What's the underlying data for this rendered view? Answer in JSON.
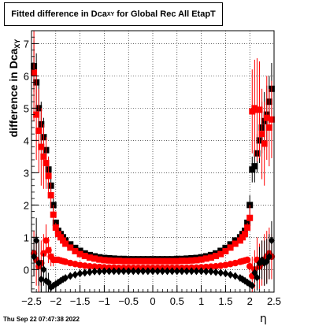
{
  "title": {
    "main": "Fitted difference in Dca",
    "sub": "XY",
    "tail": " for Global Rec All EtapT"
  },
  "ylabel": {
    "main": "difference in Dca",
    "sub": "XY"
  },
  "xlabel": "η",
  "timestamp": "Thu Sep 22 07:47:38 2022",
  "colors": {
    "series_black": "#000000",
    "series_red": "#ff0000",
    "frame": "#000000",
    "grid": "#000000"
  },
  "chart_data": {
    "type": "scatter",
    "xlim": [
      -2.5,
      2.5
    ],
    "ylim": [
      -0.7,
      7.4
    ],
    "grid": true,
    "x_ticks": [
      {
        "value": -2.5,
        "label": "−2.5"
      },
      {
        "value": -2,
        "label": "−2"
      },
      {
        "value": -1.5,
        "label": "−1.5"
      },
      {
        "value": -1,
        "label": "−1"
      },
      {
        "value": -0.5,
        "label": "−0.5"
      },
      {
        "value": 0,
        "label": "0"
      },
      {
        "value": 0.5,
        "label": "0.5"
      },
      {
        "value": 1,
        "label": "1"
      },
      {
        "value": 1.5,
        "label": "1.5"
      },
      {
        "value": 2,
        "label": "2"
      },
      {
        "value": 2.5,
        "label": "2.5"
      }
    ],
    "y_ticks": [
      {
        "value": 0,
        "label": "0"
      },
      {
        "value": 1,
        "label": "1"
      },
      {
        "value": 2,
        "label": "2"
      },
      {
        "value": 3,
        "label": "3"
      },
      {
        "value": 4,
        "label": "4"
      },
      {
        "value": 5,
        "label": "5"
      },
      {
        "value": 6,
        "label": "6"
      },
      {
        "value": 7,
        "label": "7"
      }
    ],
    "series": [
      {
        "color": "#000000",
        "marker": "square",
        "x": [
          -2.45,
          -2.4,
          -2.35,
          -2.3,
          -2.25,
          -2.2,
          -2.15,
          -2.1,
          -2.05,
          -2.0,
          -1.95,
          -1.9,
          -1.85,
          -1.8,
          -1.7,
          -1.6,
          -1.5,
          -1.4,
          -1.3,
          -1.2,
          -1.1,
          -1.0,
          -0.9,
          -0.8,
          -0.7,
          -0.6,
          -0.5,
          -0.4,
          -0.3,
          -0.2,
          -0.1,
          0.0,
          0.1,
          0.2,
          0.3,
          0.4,
          0.5,
          0.6,
          0.7,
          0.8,
          0.9,
          1.0,
          1.1,
          1.2,
          1.3,
          1.4,
          1.5,
          1.6,
          1.7,
          1.8,
          1.85,
          1.9,
          1.95,
          2.0,
          2.05,
          2.1,
          2.15,
          2.2,
          2.25,
          2.3,
          2.35,
          2.4,
          2.45
        ],
        "y": [
          6.3,
          5.8,
          5.0,
          4.5,
          4.1,
          3.7,
          3.1,
          2.6,
          2.0,
          1.45,
          1.2,
          1.1,
          1.0,
          0.9,
          0.78,
          0.67,
          0.58,
          0.5,
          0.45,
          0.41,
          0.38,
          0.36,
          0.35,
          0.34,
          0.33,
          0.33,
          0.32,
          0.32,
          0.32,
          0.32,
          0.32,
          0.32,
          0.32,
          0.32,
          0.32,
          0.32,
          0.33,
          0.33,
          0.34,
          0.35,
          0.36,
          0.38,
          0.41,
          0.45,
          0.5,
          0.58,
          0.67,
          0.78,
          0.9,
          1.0,
          1.1,
          1.2,
          1.45,
          2.0,
          3.1,
          3.2,
          3.6,
          4.0,
          4.4,
          4.6,
          4.8,
          5.2,
          5.6
        ],
        "err": [
          0.8,
          0.9,
          0.8,
          0.7,
          0.6,
          0.5,
          0.4,
          0.3,
          0.2,
          0.1,
          0.1,
          0.08,
          0.06,
          0.05,
          0.04,
          0.03,
          0.02,
          0.02,
          0.02,
          0.02,
          0.02,
          0.02,
          0.02,
          0.02,
          0.02,
          0.02,
          0.02,
          0.02,
          0.02,
          0.02,
          0.02,
          0.02,
          0.02,
          0.02,
          0.02,
          0.02,
          0.02,
          0.02,
          0.02,
          0.02,
          0.02,
          0.02,
          0.02,
          0.02,
          0.02,
          0.02,
          0.03,
          0.04,
          0.05,
          0.06,
          0.08,
          0.1,
          0.1,
          0.3,
          0.4,
          0.5,
          0.6,
          0.7,
          0.8,
          0.9,
          0.9,
          0.8,
          0.8
        ]
      },
      {
        "color": "#ff0000",
        "marker": "square",
        "x": [
          -2.45,
          -2.4,
          -2.35,
          -2.3,
          -2.25,
          -2.2,
          -2.15,
          -2.1,
          -2.05,
          -2.0,
          -1.95,
          -1.9,
          -1.85,
          -1.8,
          -1.7,
          -1.6,
          -1.5,
          -1.4,
          -1.3,
          -1.2,
          -1.1,
          -1.0,
          -0.9,
          -0.8,
          -0.7,
          -0.6,
          -0.5,
          -0.4,
          -0.3,
          -0.2,
          -0.1,
          0.0,
          0.1,
          0.2,
          0.3,
          0.4,
          0.5,
          0.6,
          0.7,
          0.8,
          0.9,
          1.0,
          1.1,
          1.2,
          1.3,
          1.4,
          1.5,
          1.6,
          1.7,
          1.8,
          1.85,
          1.9,
          1.95,
          2.0,
          2.05,
          2.1,
          2.15,
          2.2,
          2.25,
          2.3,
          2.35,
          2.4,
          2.45
        ],
        "y": [
          6.1,
          4.8,
          4.3,
          3.8,
          3.5,
          3.3,
          2.9,
          2.3,
          1.7,
          1.3,
          1.1,
          1.0,
          0.9,
          0.8,
          0.68,
          0.57,
          0.48,
          0.42,
          0.37,
          0.34,
          0.31,
          0.29,
          0.28,
          0.27,
          0.27,
          0.26,
          0.26,
          0.26,
          0.26,
          0.26,
          0.26,
          0.26,
          0.26,
          0.26,
          0.26,
          0.26,
          0.26,
          0.27,
          0.27,
          0.28,
          0.29,
          0.31,
          0.34,
          0.37,
          0.42,
          0.48,
          0.57,
          0.68,
          0.8,
          0.9,
          1.0,
          1.1,
          1.3,
          1.6,
          4.9,
          5.0,
          4.95,
          4.95,
          4.2,
          3.9,
          4.7,
          4.4,
          4.65
        ],
        "err": [
          1.5,
          1.4,
          1.3,
          1.2,
          1.0,
          0.8,
          0.6,
          0.4,
          0.3,
          0.15,
          0.12,
          0.1,
          0.08,
          0.06,
          0.05,
          0.04,
          0.03,
          0.03,
          0.03,
          0.03,
          0.03,
          0.03,
          0.03,
          0.03,
          0.03,
          0.03,
          0.03,
          0.03,
          0.03,
          0.03,
          0.03,
          0.03,
          0.03,
          0.03,
          0.03,
          0.03,
          0.03,
          0.03,
          0.03,
          0.03,
          0.03,
          0.03,
          0.03,
          0.03,
          0.03,
          0.03,
          0.04,
          0.05,
          0.06,
          0.08,
          0.1,
          0.12,
          0.15,
          0.4,
          1.3,
          1.5,
          1.6,
          1.5,
          1.4,
          1.3,
          1.3,
          1.2,
          1.2
        ]
      },
      {
        "color": "#ff0000",
        "marker": "circle",
        "x": [
          -2.45,
          -2.4,
          -2.35,
          -2.3,
          -2.25,
          -2.2,
          -2.15,
          -2.1,
          -2.05,
          -2.0,
          -1.95,
          -1.9,
          -1.85,
          -1.8,
          -1.7,
          -1.6,
          -1.5,
          -1.4,
          -1.3,
          -1.2,
          -1.1,
          -1.0,
          -0.9,
          -0.8,
          -0.7,
          -0.6,
          -0.5,
          -0.4,
          -0.3,
          -0.2,
          -0.1,
          0.0,
          0.1,
          0.2,
          0.3,
          0.4,
          0.5,
          0.6,
          0.7,
          0.8,
          0.9,
          1.0,
          1.1,
          1.2,
          1.3,
          1.4,
          1.5,
          1.6,
          1.7,
          1.8,
          1.85,
          1.9,
          1.95,
          2.0,
          2.05,
          2.1,
          2.15,
          2.2,
          2.25,
          2.3,
          2.35,
          2.4,
          2.45
        ],
        "y": [
          0.5,
          0.3,
          0.1,
          0.2,
          0.5,
          0.9,
          0.6,
          0.4,
          0.3,
          0.3,
          0.3,
          0.28,
          0.26,
          0.24,
          0.2,
          0.17,
          0.14,
          0.12,
          0.1,
          0.09,
          0.08,
          0.07,
          0.06,
          0.06,
          0.05,
          0.05,
          0.05,
          0.05,
          0.05,
          0.05,
          0.05,
          0.05,
          0.05,
          0.05,
          0.05,
          0.05,
          0.05,
          0.05,
          0.05,
          0.06,
          0.06,
          0.07,
          0.08,
          0.09,
          0.1,
          0.12,
          0.14,
          0.17,
          0.2,
          0.24,
          0.26,
          0.28,
          0.3,
          0.1,
          -0.2,
          0.0,
          0.3,
          0.1,
          0.2,
          0.3,
          0.4,
          0.5,
          0.4
        ],
        "err": [
          0.7,
          0.8,
          0.8,
          0.7,
          0.6,
          0.5,
          0.4,
          0.3,
          0.2,
          0.1,
          0.08,
          0.06,
          0.05,
          0.04,
          0.03,
          0.03,
          0.02,
          0.02,
          0.02,
          0.02,
          0.02,
          0.02,
          0.02,
          0.02,
          0.02,
          0.02,
          0.02,
          0.02,
          0.02,
          0.02,
          0.02,
          0.02,
          0.02,
          0.02,
          0.02,
          0.02,
          0.02,
          0.02,
          0.02,
          0.02,
          0.02,
          0.02,
          0.02,
          0.02,
          0.02,
          0.02,
          0.02,
          0.03,
          0.03,
          0.04,
          0.05,
          0.06,
          0.08,
          0.2,
          0.6,
          0.6,
          0.7,
          0.7,
          0.7,
          0.8,
          0.8,
          0.8,
          0.7
        ]
      },
      {
        "color": "#000000",
        "marker": "diamond",
        "x": [
          -2.45,
          -2.4,
          -2.35,
          -2.3,
          -2.25,
          -2.2,
          -2.15,
          -2.1,
          -2.05,
          -2.0,
          -1.95,
          -1.9,
          -1.85,
          -1.8,
          -1.7,
          -1.6,
          -1.5,
          -1.4,
          -1.3,
          -1.2,
          -1.1,
          -1.0,
          -0.9,
          -0.8,
          -0.7,
          -0.6,
          -0.5,
          -0.4,
          -0.3,
          -0.2,
          -0.1,
          0.0,
          0.1,
          0.2,
          0.3,
          0.4,
          0.5,
          0.6,
          0.7,
          0.8,
          0.9,
          1.0,
          1.1,
          1.2,
          1.3,
          1.4,
          1.5,
          1.6,
          1.7,
          1.8,
          1.85,
          1.9,
          1.95,
          2.0,
          2.05,
          2.1,
          2.15,
          2.2,
          2.25,
          2.3,
          2.35,
          2.4,
          2.45
        ],
        "y": [
          0.4,
          0.9,
          0.2,
          -0.3,
          0.0,
          -0.35,
          -0.4,
          -0.55,
          -0.5,
          -0.45,
          -0.4,
          -0.35,
          -0.3,
          -0.26,
          -0.2,
          -0.16,
          -0.12,
          -0.1,
          -0.08,
          -0.06,
          -0.06,
          -0.05,
          -0.05,
          -0.05,
          -0.05,
          -0.05,
          -0.05,
          -0.05,
          -0.05,
          -0.05,
          -0.05,
          -0.05,
          -0.05,
          -0.05,
          -0.05,
          -0.05,
          -0.05,
          -0.05,
          -0.05,
          -0.05,
          -0.05,
          -0.05,
          -0.06,
          -0.06,
          -0.08,
          -0.1,
          -0.12,
          -0.16,
          -0.2,
          -0.26,
          -0.3,
          -0.35,
          -0.4,
          -0.45,
          -0.5,
          -0.1,
          -0.25,
          0.2,
          0.3,
          0.2,
          0.25,
          0.4,
          0.9
        ],
        "err": [
          0.6,
          0.7,
          0.7,
          0.6,
          0.5,
          0.4,
          0.3,
          0.2,
          0.1,
          0.08,
          0.06,
          0.05,
          0.04,
          0.03,
          0.03,
          0.02,
          0.02,
          0.02,
          0.02,
          0.02,
          0.02,
          0.02,
          0.02,
          0.02,
          0.02,
          0.02,
          0.02,
          0.02,
          0.02,
          0.02,
          0.02,
          0.02,
          0.02,
          0.02,
          0.02,
          0.02,
          0.02,
          0.02,
          0.02,
          0.02,
          0.02,
          0.02,
          0.02,
          0.02,
          0.02,
          0.02,
          0.02,
          0.02,
          0.03,
          0.03,
          0.04,
          0.05,
          0.06,
          0.08,
          0.1,
          0.3,
          0.4,
          0.5,
          0.6,
          0.7,
          0.7,
          0.7,
          0.6
        ]
      }
    ]
  }
}
